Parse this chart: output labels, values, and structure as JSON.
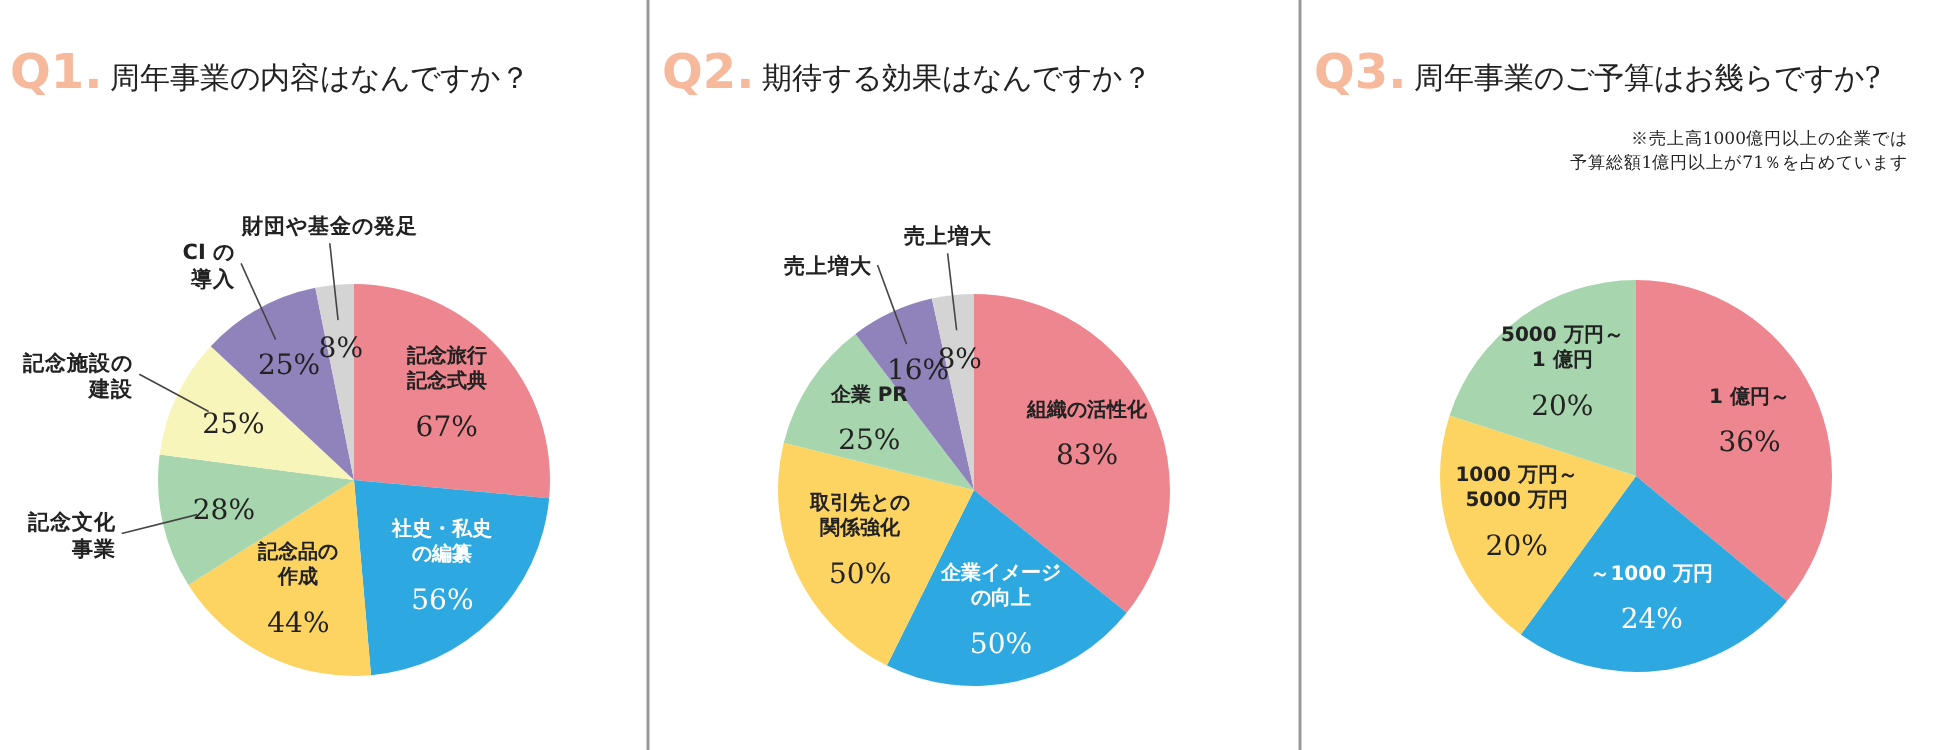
{
  "chart_data": [
    {
      "type": "pie",
      "title": "Q1.周年事業の内容はなんですか？",
      "categories": [
        "記念旅行記念式典",
        "社史・私史の編纂",
        "記念品の作成",
        "記念文化事業",
        "記念施設の建設",
        "CI の導入",
        "財団や基金の発足"
      ],
      "values": [
        67,
        56,
        44,
        28,
        25,
        25,
        8
      ],
      "value_labels": [
        "67%",
        "56%",
        "44%",
        "28%",
        "25%",
        "25%",
        "8%"
      ],
      "colors": [
        "#ee868f",
        "#2ea8e0",
        "#fdd462",
        "#a6d5ae",
        "#f8f5bb",
        "#9083bc",
        "#d4d4d4"
      ]
    },
    {
      "type": "pie",
      "title": "Q2.期待する効果はなんですか？",
      "categories": [
        "組織の活性化",
        "企業イメージの向上",
        "取引先との関係強化",
        "企業 PR",
        "売上増大",
        "売上増大"
      ],
      "values": [
        83,
        50,
        50,
        25,
        16,
        8
      ],
      "value_labels": [
        "83%",
        "50%",
        "50%",
        "25%",
        "16%",
        "8%"
      ],
      "colors": [
        "#ee868f",
        "#2ea8e0",
        "#fdd462",
        "#a6d5ae",
        "#9083bc",
        "#d4d4d4"
      ]
    },
    {
      "type": "pie",
      "title": "Q3.周年事業のご予算はお幾らですか?",
      "annotations": [
        "※売上高1000億円以上の企業では予算総額1億円以上が71％を占めています"
      ],
      "categories": [
        "1 億円～",
        "～1000 万円",
        "1000 万円～5000 万円",
        "5000 万円～1 億円"
      ],
      "values": [
        36,
        24,
        20,
        20
      ],
      "value_labels": [
        "36%",
        "24%",
        "20%",
        "20%"
      ],
      "colors": [
        "#ee868f",
        "#2ea8e0",
        "#fdd462",
        "#a6d5ae"
      ]
    }
  ]
}
